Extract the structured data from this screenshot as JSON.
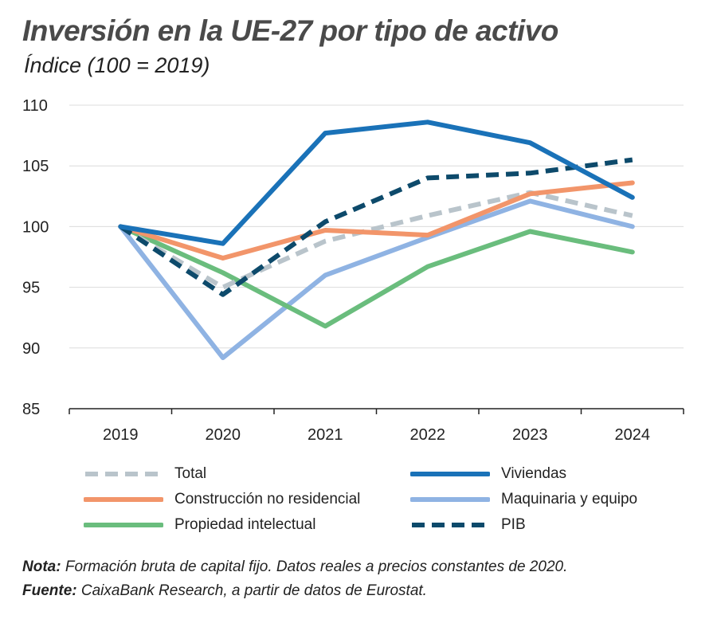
{
  "header": {
    "title": "Inversión en la UE-27 por tipo de activo",
    "subtitle": "Índice (100 = 2019)"
  },
  "chart_data": {
    "type": "line",
    "title": "Inversión en la UE-27 por tipo de activo",
    "subtitle": "Índice (100 = 2019)",
    "xlabel": "",
    "ylabel": "",
    "x": [
      "2019",
      "2020",
      "2021",
      "2022",
      "2023",
      "2024"
    ],
    "ylim": [
      85,
      110
    ],
    "yticks": [
      85,
      90,
      95,
      100,
      105,
      110
    ],
    "grid": true,
    "legend_position": "bottom",
    "series": [
      {
        "name": "Total",
        "values": [
          100,
          95.0,
          98.8,
          100.9,
          102.8,
          100.9
        ],
        "color": "#b9c4cb",
        "dashed": true
      },
      {
        "name": "Viviendas",
        "values": [
          100,
          98.6,
          107.7,
          108.6,
          106.9,
          102.4
        ],
        "color": "#1a72b8",
        "dashed": false
      },
      {
        "name": "Construcción no residencial",
        "values": [
          100,
          97.4,
          99.7,
          99.3,
          102.7,
          103.6
        ],
        "color": "#f2956a",
        "dashed": false
      },
      {
        "name": "Maquinaria y equipo",
        "values": [
          100,
          89.2,
          96.0,
          99.1,
          102.1,
          100.0
        ],
        "color": "#8fb3e3",
        "dashed": false
      },
      {
        "name": "Propiedad intelectual",
        "values": [
          100,
          96.2,
          91.8,
          96.7,
          99.6,
          97.9
        ],
        "color": "#6abd7d",
        "dashed": false
      },
      {
        "name": "PIB",
        "values": [
          100,
          94.4,
          100.4,
          104.0,
          104.4,
          105.5
        ],
        "color": "#0d4a6b",
        "dashed": true
      }
    ]
  },
  "footer": {
    "nota_label": "Nota:",
    "nota_text": " Formación bruta de capital fijo. Datos reales a precios constantes de 2020.",
    "fuente_label": "Fuente:",
    "fuente_text": " CaixaBank Research, a partir de datos de Eurostat."
  }
}
